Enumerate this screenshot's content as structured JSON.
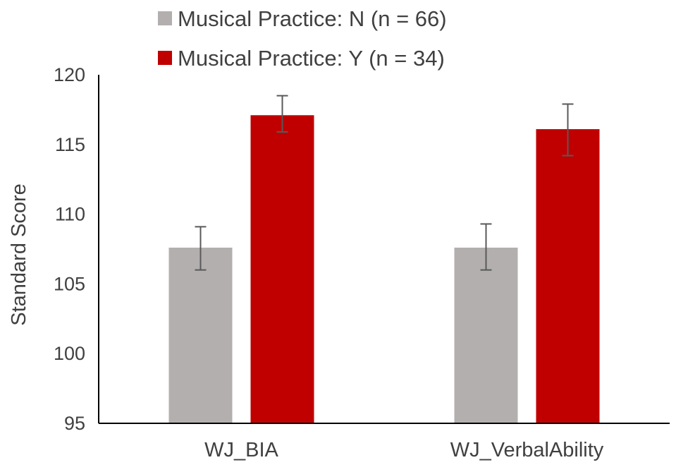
{
  "chart_data": {
    "type": "bar",
    "title": "",
    "xlabel": "",
    "ylabel": "Standard Score",
    "ylim": [
      95,
      120
    ],
    "yticks": [
      95,
      100,
      105,
      110,
      115,
      120
    ],
    "categories": [
      "WJ_BIA",
      "WJ_VerbalAbility"
    ],
    "series": [
      {
        "name": "Musical Practice: N (n = 66)",
        "color": "#b3afae",
        "values": [
          107.6,
          107.6
        ],
        "error_low": [
          106.0,
          106.0
        ],
        "error_high": [
          109.1,
          109.3
        ]
      },
      {
        "name": "Musical Practice: Y (n = 34)",
        "color": "#c00000",
        "values": [
          117.1,
          116.1
        ],
        "error_low": [
          115.9,
          114.2
        ],
        "error_high": [
          118.5,
          117.9
        ]
      }
    ],
    "grid": false,
    "legend_position": "top-center",
    "error_bar_color": "#595959"
  }
}
